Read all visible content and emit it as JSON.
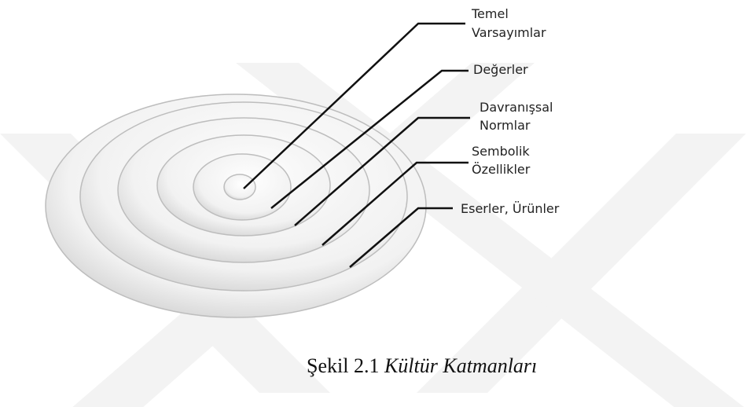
{
  "layers": [
    {
      "lines": [
        "Temel",
        "Varsayımlar"
      ]
    },
    {
      "lines": [
        "Değerler"
      ]
    },
    {
      "lines": [
        "Davranışsal",
        "Normlar"
      ]
    },
    {
      "lines": [
        "Sembolik",
        "Özellikler"
      ]
    },
    {
      "lines": [
        "Eserler, Ürünler"
      ]
    }
  ],
  "caption": {
    "label": "Şekil 2.1",
    "title": "Kültür Katmanları"
  }
}
